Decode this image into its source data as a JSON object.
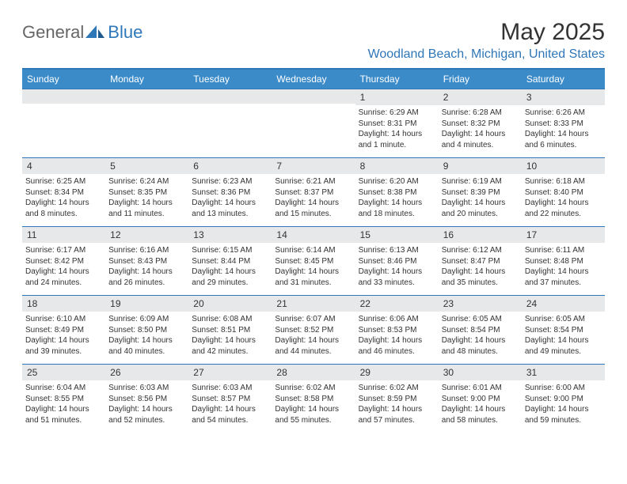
{
  "brand": {
    "part1": "General",
    "part2": "Blue"
  },
  "title": "May 2025",
  "location": "Woodland Beach, Michigan, United States",
  "colors": {
    "brand_blue": "#2e77b8",
    "header_bar": "#3b8bc9",
    "daynum_bg": "#e6e8ea",
    "text": "#333333",
    "white": "#ffffff"
  },
  "dow": [
    "Sunday",
    "Monday",
    "Tuesday",
    "Wednesday",
    "Thursday",
    "Friday",
    "Saturday"
  ],
  "weeks": [
    [
      null,
      null,
      null,
      null,
      {
        "n": "1",
        "sr": "Sunrise: 6:29 AM",
        "ss": "Sunset: 8:31 PM",
        "d1": "Daylight: 14 hours",
        "d2": "and 1 minute."
      },
      {
        "n": "2",
        "sr": "Sunrise: 6:28 AM",
        "ss": "Sunset: 8:32 PM",
        "d1": "Daylight: 14 hours",
        "d2": "and 4 minutes."
      },
      {
        "n": "3",
        "sr": "Sunrise: 6:26 AM",
        "ss": "Sunset: 8:33 PM",
        "d1": "Daylight: 14 hours",
        "d2": "and 6 minutes."
      }
    ],
    [
      {
        "n": "4",
        "sr": "Sunrise: 6:25 AM",
        "ss": "Sunset: 8:34 PM",
        "d1": "Daylight: 14 hours",
        "d2": "and 8 minutes."
      },
      {
        "n": "5",
        "sr": "Sunrise: 6:24 AM",
        "ss": "Sunset: 8:35 PM",
        "d1": "Daylight: 14 hours",
        "d2": "and 11 minutes."
      },
      {
        "n": "6",
        "sr": "Sunrise: 6:23 AM",
        "ss": "Sunset: 8:36 PM",
        "d1": "Daylight: 14 hours",
        "d2": "and 13 minutes."
      },
      {
        "n": "7",
        "sr": "Sunrise: 6:21 AM",
        "ss": "Sunset: 8:37 PM",
        "d1": "Daylight: 14 hours",
        "d2": "and 15 minutes."
      },
      {
        "n": "8",
        "sr": "Sunrise: 6:20 AM",
        "ss": "Sunset: 8:38 PM",
        "d1": "Daylight: 14 hours",
        "d2": "and 18 minutes."
      },
      {
        "n": "9",
        "sr": "Sunrise: 6:19 AM",
        "ss": "Sunset: 8:39 PM",
        "d1": "Daylight: 14 hours",
        "d2": "and 20 minutes."
      },
      {
        "n": "10",
        "sr": "Sunrise: 6:18 AM",
        "ss": "Sunset: 8:40 PM",
        "d1": "Daylight: 14 hours",
        "d2": "and 22 minutes."
      }
    ],
    [
      {
        "n": "11",
        "sr": "Sunrise: 6:17 AM",
        "ss": "Sunset: 8:42 PM",
        "d1": "Daylight: 14 hours",
        "d2": "and 24 minutes."
      },
      {
        "n": "12",
        "sr": "Sunrise: 6:16 AM",
        "ss": "Sunset: 8:43 PM",
        "d1": "Daylight: 14 hours",
        "d2": "and 26 minutes."
      },
      {
        "n": "13",
        "sr": "Sunrise: 6:15 AM",
        "ss": "Sunset: 8:44 PM",
        "d1": "Daylight: 14 hours",
        "d2": "and 29 minutes."
      },
      {
        "n": "14",
        "sr": "Sunrise: 6:14 AM",
        "ss": "Sunset: 8:45 PM",
        "d1": "Daylight: 14 hours",
        "d2": "and 31 minutes."
      },
      {
        "n": "15",
        "sr": "Sunrise: 6:13 AM",
        "ss": "Sunset: 8:46 PM",
        "d1": "Daylight: 14 hours",
        "d2": "and 33 minutes."
      },
      {
        "n": "16",
        "sr": "Sunrise: 6:12 AM",
        "ss": "Sunset: 8:47 PM",
        "d1": "Daylight: 14 hours",
        "d2": "and 35 minutes."
      },
      {
        "n": "17",
        "sr": "Sunrise: 6:11 AM",
        "ss": "Sunset: 8:48 PM",
        "d1": "Daylight: 14 hours",
        "d2": "and 37 minutes."
      }
    ],
    [
      {
        "n": "18",
        "sr": "Sunrise: 6:10 AM",
        "ss": "Sunset: 8:49 PM",
        "d1": "Daylight: 14 hours",
        "d2": "and 39 minutes."
      },
      {
        "n": "19",
        "sr": "Sunrise: 6:09 AM",
        "ss": "Sunset: 8:50 PM",
        "d1": "Daylight: 14 hours",
        "d2": "and 40 minutes."
      },
      {
        "n": "20",
        "sr": "Sunrise: 6:08 AM",
        "ss": "Sunset: 8:51 PM",
        "d1": "Daylight: 14 hours",
        "d2": "and 42 minutes."
      },
      {
        "n": "21",
        "sr": "Sunrise: 6:07 AM",
        "ss": "Sunset: 8:52 PM",
        "d1": "Daylight: 14 hours",
        "d2": "and 44 minutes."
      },
      {
        "n": "22",
        "sr": "Sunrise: 6:06 AM",
        "ss": "Sunset: 8:53 PM",
        "d1": "Daylight: 14 hours",
        "d2": "and 46 minutes."
      },
      {
        "n": "23",
        "sr": "Sunrise: 6:05 AM",
        "ss": "Sunset: 8:54 PM",
        "d1": "Daylight: 14 hours",
        "d2": "and 48 minutes."
      },
      {
        "n": "24",
        "sr": "Sunrise: 6:05 AM",
        "ss": "Sunset: 8:54 PM",
        "d1": "Daylight: 14 hours",
        "d2": "and 49 minutes."
      }
    ],
    [
      {
        "n": "25",
        "sr": "Sunrise: 6:04 AM",
        "ss": "Sunset: 8:55 PM",
        "d1": "Daylight: 14 hours",
        "d2": "and 51 minutes."
      },
      {
        "n": "26",
        "sr": "Sunrise: 6:03 AM",
        "ss": "Sunset: 8:56 PM",
        "d1": "Daylight: 14 hours",
        "d2": "and 52 minutes."
      },
      {
        "n": "27",
        "sr": "Sunrise: 6:03 AM",
        "ss": "Sunset: 8:57 PM",
        "d1": "Daylight: 14 hours",
        "d2": "and 54 minutes."
      },
      {
        "n": "28",
        "sr": "Sunrise: 6:02 AM",
        "ss": "Sunset: 8:58 PM",
        "d1": "Daylight: 14 hours",
        "d2": "and 55 minutes."
      },
      {
        "n": "29",
        "sr": "Sunrise: 6:02 AM",
        "ss": "Sunset: 8:59 PM",
        "d1": "Daylight: 14 hours",
        "d2": "and 57 minutes."
      },
      {
        "n": "30",
        "sr": "Sunrise: 6:01 AM",
        "ss": "Sunset: 9:00 PM",
        "d1": "Daylight: 14 hours",
        "d2": "and 58 minutes."
      },
      {
        "n": "31",
        "sr": "Sunrise: 6:00 AM",
        "ss": "Sunset: 9:00 PM",
        "d1": "Daylight: 14 hours",
        "d2": "and 59 minutes."
      }
    ]
  ]
}
